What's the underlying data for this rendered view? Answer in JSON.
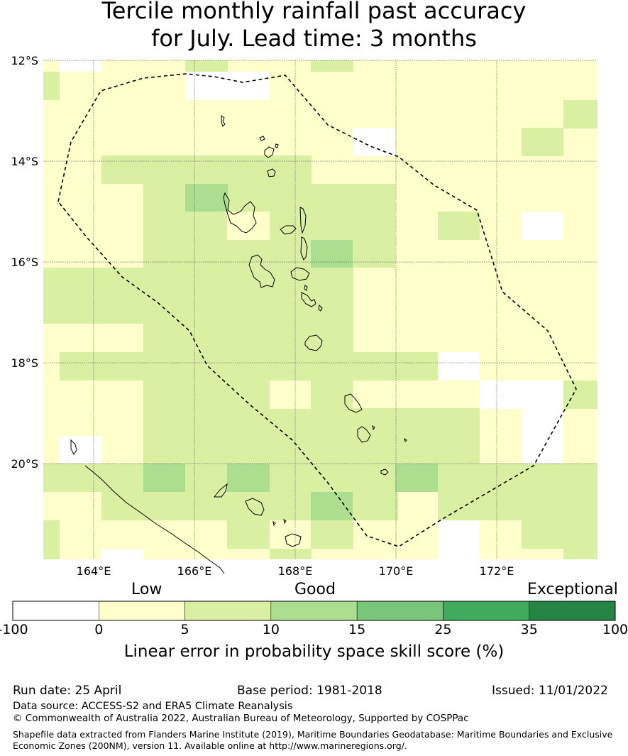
{
  "title_line1": "Tercile monthly rainfall past accuracy",
  "title_line2": "for July. Lead time: 3 months",
  "map": {
    "lat_labels": [
      "12°S",
      "14°S",
      "16°S",
      "18°S",
      "20°S"
    ],
    "lon_labels": [
      "164°E",
      "166°E",
      "168°E",
      "170°E",
      "172°E"
    ],
    "lon_range": [
      163.0,
      174.0
    ],
    "lat_range": [
      -12.0,
      -21.9
    ],
    "grid_lons": [
      164,
      166,
      168,
      170,
      172
    ],
    "grid_lats": [
      -12,
      -14,
      -16,
      -18,
      -20
    ],
    "colors": {
      "white": "#ffffff",
      "light_yellow": "#ffffcc",
      "light_green": "#d9f0a3",
      "mid_green": "#addd8e",
      "green": "#78c679",
      "dark_green": "#41ab5d",
      "darkest_green": "#238443",
      "boundary": "#000000"
    }
  },
  "colorbar": {
    "headings": {
      "low": "Low",
      "good": "Good",
      "exceptional": "Exceptional"
    },
    "ticks": [
      "-100",
      "0",
      "5",
      "10",
      "15",
      "25",
      "35",
      "100"
    ],
    "colors": [
      "#ffffff",
      "#ffffcc",
      "#d9f0a3",
      "#addd8e",
      "#78c679",
      "#41ab5d",
      "#238443"
    ],
    "label": "Linear error in probability space skill score (%)"
  },
  "footer": {
    "run_date": "Run date: 25 April",
    "base_period": "Base period: 1981-2018",
    "issued": "Issued: 11/01/2022",
    "data_source": "Data source: ACCESS-S2 and ERA5 Climate Reanalysis",
    "copyright": "© Commonwealth of Australia 2022, Australian Bureau of Meteorology, Supported by COSPPac",
    "shapefile_line1": "Shapefile data extracted from Flanders Marine Institute (2019), Maritime Boundaries Geodatabase: Maritime Boundaries and Exclusive",
    "shapefile_line2": "Economic Zones (200NM), version 11. Available online at http://www.marineregions.org/."
  }
}
